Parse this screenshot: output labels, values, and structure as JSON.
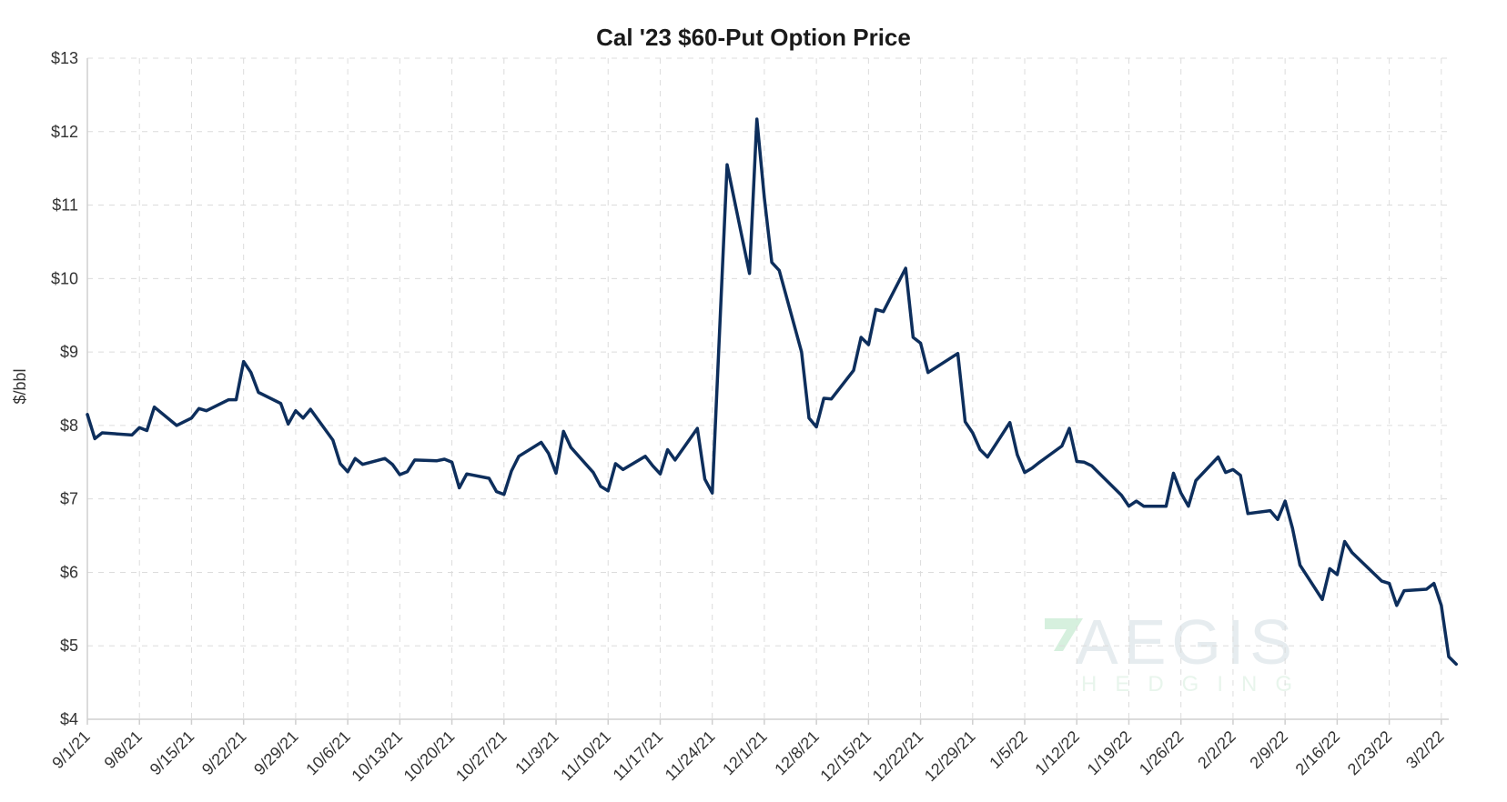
{
  "chart_data": {
    "type": "line",
    "title": "Cal '23 $60-Put Option Price",
    "ylabel": "$/bbl",
    "ylim": [
      4,
      13
    ],
    "yticks": [
      "$4",
      "$5",
      "$6",
      "$7",
      "$8",
      "$9",
      "$10",
      "$11",
      "$12",
      "$13"
    ],
    "xticks": [
      "9/1/21",
      "9/8/21",
      "9/15/21",
      "9/22/21",
      "9/29/21",
      "10/6/21",
      "10/13/21",
      "10/20/21",
      "10/27/21",
      "11/3/21",
      "11/10/21",
      "11/17/21",
      "11/24/21",
      "12/1/21",
      "12/8/21",
      "12/15/21",
      "12/22/21",
      "12/29/21",
      "1/5/22",
      "1/12/22",
      "1/19/22",
      "1/26/22",
      "2/2/22",
      "2/9/22",
      "2/16/22",
      "2/23/22",
      "3/2/22"
    ],
    "xlim": [
      "2021-09-01",
      "2022-03-03"
    ],
    "grid": true,
    "line_color": "#0d2e5c",
    "series": [
      {
        "name": "",
        "points": [
          [
            "2021-09-01",
            8.15
          ],
          [
            "2021-09-02",
            7.82
          ],
          [
            "2021-09-03",
            7.9
          ],
          [
            "2021-09-07",
            7.87
          ],
          [
            "2021-09-08",
            7.97
          ],
          [
            "2021-09-09",
            7.93
          ],
          [
            "2021-09-10",
            8.25
          ],
          [
            "2021-09-13",
            8.0
          ],
          [
            "2021-09-14",
            8.05
          ],
          [
            "2021-09-15",
            8.1
          ],
          [
            "2021-09-16",
            8.23
          ],
          [
            "2021-09-17",
            8.2
          ],
          [
            "2021-09-20",
            8.35
          ],
          [
            "2021-09-21",
            8.35
          ],
          [
            "2021-09-22",
            8.87
          ],
          [
            "2021-09-23",
            8.72
          ],
          [
            "2021-09-24",
            8.45
          ],
          [
            "2021-09-27",
            8.3
          ],
          [
            "2021-09-28",
            8.02
          ],
          [
            "2021-09-29",
            8.2
          ],
          [
            "2021-09-30",
            8.1
          ],
          [
            "2021-10-01",
            8.22
          ],
          [
            "2021-10-04",
            7.8
          ],
          [
            "2021-10-05",
            7.48
          ],
          [
            "2021-10-06",
            7.37
          ],
          [
            "2021-10-07",
            7.55
          ],
          [
            "2021-10-08",
            7.47
          ],
          [
            "2021-10-11",
            7.55
          ],
          [
            "2021-10-12",
            7.47
          ],
          [
            "2021-10-13",
            7.33
          ],
          [
            "2021-10-14",
            7.37
          ],
          [
            "2021-10-15",
            7.53
          ],
          [
            "2021-10-18",
            7.52
          ],
          [
            "2021-10-19",
            7.54
          ],
          [
            "2021-10-20",
            7.5
          ],
          [
            "2021-10-21",
            7.15
          ],
          [
            "2021-10-22",
            7.34
          ],
          [
            "2021-10-25",
            7.28
          ],
          [
            "2021-10-26",
            7.1
          ],
          [
            "2021-10-27",
            7.06
          ],
          [
            "2021-10-28",
            7.38
          ],
          [
            "2021-10-29",
            7.58
          ],
          [
            "2021-11-01",
            7.77
          ],
          [
            "2021-11-02",
            7.62
          ],
          [
            "2021-11-03",
            7.35
          ],
          [
            "2021-11-04",
            7.92
          ],
          [
            "2021-11-05",
            7.7
          ],
          [
            "2021-11-08",
            7.36
          ],
          [
            "2021-11-09",
            7.17
          ],
          [
            "2021-11-10",
            7.11
          ],
          [
            "2021-11-11",
            7.48
          ],
          [
            "2021-11-12",
            7.4
          ],
          [
            "2021-11-15",
            7.58
          ],
          [
            "2021-11-16",
            7.45
          ],
          [
            "2021-11-17",
            7.34
          ],
          [
            "2021-11-18",
            7.67
          ],
          [
            "2021-11-19",
            7.53
          ],
          [
            "2021-11-22",
            7.96
          ],
          [
            "2021-11-23",
            7.27
          ],
          [
            "2021-11-24",
            7.08
          ],
          [
            "2021-11-26",
            11.55
          ],
          [
            "2021-11-29",
            10.07
          ],
          [
            "2021-11-30",
            12.17
          ],
          [
            "2021-12-01",
            11.1
          ],
          [
            "2021-12-02",
            10.22
          ],
          [
            "2021-12-03",
            10.11
          ],
          [
            "2021-12-06",
            9.0
          ],
          [
            "2021-12-07",
            8.1
          ],
          [
            "2021-12-08",
            7.98
          ],
          [
            "2021-12-09",
            8.37
          ],
          [
            "2021-12-10",
            8.36
          ],
          [
            "2021-12-13",
            8.75
          ],
          [
            "2021-12-14",
            9.2
          ],
          [
            "2021-12-15",
            9.1
          ],
          [
            "2021-12-16",
            9.58
          ],
          [
            "2021-12-17",
            9.55
          ],
          [
            "2021-12-20",
            10.14
          ],
          [
            "2021-12-21",
            9.2
          ],
          [
            "2021-12-22",
            9.12
          ],
          [
            "2021-12-23",
            8.72
          ],
          [
            "2021-12-27",
            8.98
          ],
          [
            "2021-12-28",
            8.05
          ],
          [
            "2021-12-29",
            7.9
          ],
          [
            "2021-12-30",
            7.67
          ],
          [
            "2021-12-31",
            7.57
          ],
          [
            "2022-01-03",
            8.04
          ],
          [
            "2022-01-04",
            7.6
          ],
          [
            "2022-01-05",
            7.36
          ],
          [
            "2022-01-06",
            7.42
          ],
          [
            "2022-01-07",
            7.5
          ],
          [
            "2022-01-10",
            7.72
          ],
          [
            "2022-01-11",
            7.96
          ],
          [
            "2022-01-12",
            7.51
          ],
          [
            "2022-01-13",
            7.5
          ],
          [
            "2022-01-14",
            7.45
          ],
          [
            "2022-01-18",
            7.05
          ],
          [
            "2022-01-19",
            6.9
          ],
          [
            "2022-01-20",
            6.97
          ],
          [
            "2022-01-21",
            6.9
          ],
          [
            "2022-01-24",
            6.9
          ],
          [
            "2022-01-25",
            7.35
          ],
          [
            "2022-01-26",
            7.08
          ],
          [
            "2022-01-27",
            6.9
          ],
          [
            "2022-01-28",
            7.25
          ],
          [
            "2022-01-31",
            7.57
          ],
          [
            "2022-02-01",
            7.36
          ],
          [
            "2022-02-02",
            7.4
          ],
          [
            "2022-02-03",
            7.32
          ],
          [
            "2022-02-04",
            6.8
          ],
          [
            "2022-02-07",
            6.84
          ],
          [
            "2022-02-08",
            6.72
          ],
          [
            "2022-02-09",
            6.97
          ],
          [
            "2022-02-10",
            6.6
          ],
          [
            "2022-02-11",
            6.1
          ],
          [
            "2022-02-14",
            5.63
          ],
          [
            "2022-02-15",
            6.05
          ],
          [
            "2022-02-16",
            5.97
          ],
          [
            "2022-02-17",
            6.42
          ],
          [
            "2022-02-18",
            6.27
          ],
          [
            "2022-02-22",
            5.88
          ],
          [
            "2022-02-23",
            5.85
          ],
          [
            "2022-02-24",
            5.55
          ],
          [
            "2022-02-25",
            5.75
          ],
          [
            "2022-02-28",
            5.77
          ],
          [
            "2022-03-01",
            5.85
          ],
          [
            "2022-03-02",
            5.55
          ],
          [
            "2022-03-03",
            4.85
          ],
          [
            "2022-03-04",
            4.75
          ]
        ]
      }
    ]
  },
  "watermark": {
    "brand": "AEGIS",
    "tagline": "HEDGING"
  }
}
